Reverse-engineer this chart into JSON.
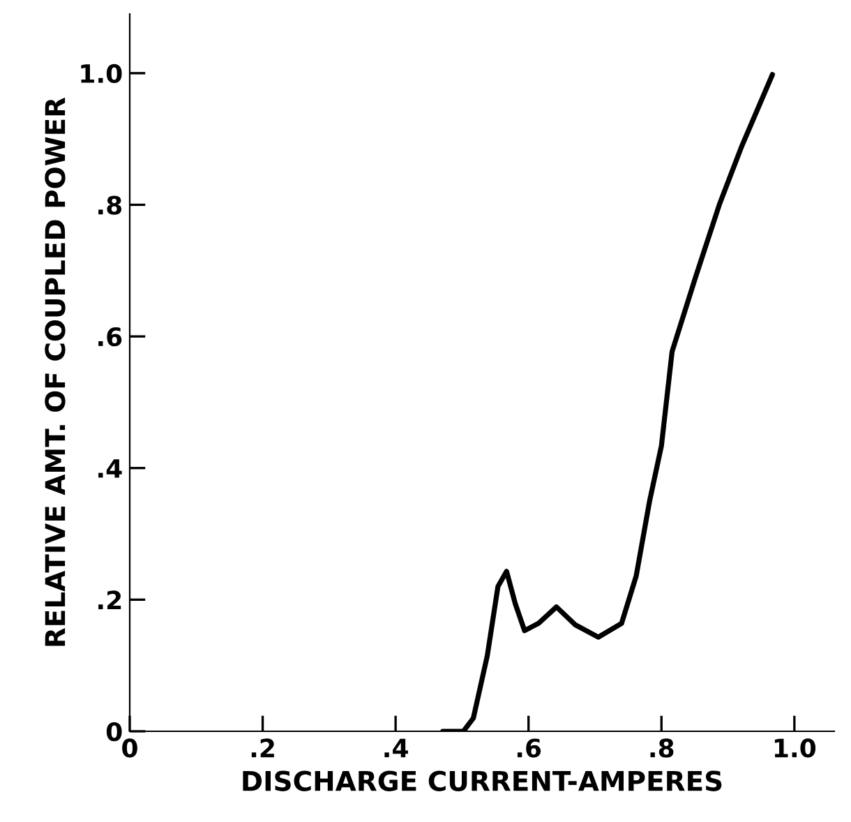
{
  "chart_data": {
    "type": "line",
    "xlabel": "DISCHARGE CURRENT-AMPERES",
    "ylabel": "RELATIVE AMT. OF COUPLED POWER",
    "xlim": [
      0,
      1.06
    ],
    "ylim": [
      0,
      1.09
    ],
    "xticks": [
      {
        "value": 0,
        "label": "0"
      },
      {
        "value": 0.2,
        "label": ".2"
      },
      {
        "value": 0.4,
        "label": ".4"
      },
      {
        "value": 0.6,
        "label": ".6"
      },
      {
        "value": 0.8,
        "label": ".8"
      },
      {
        "value": 1.0,
        "label": "1.0"
      }
    ],
    "yticks": [
      {
        "value": 0,
        "label": "0"
      },
      {
        "value": 0.2,
        "label": ".2"
      },
      {
        "value": 0.4,
        "label": ".4"
      },
      {
        "value": 0.6,
        "label": ".6"
      },
      {
        "value": 0.8,
        "label": ".8"
      },
      {
        "value": 1.0,
        "label": "1.0"
      }
    ],
    "grid": false,
    "series": [
      {
        "color": "#000000",
        "x": [
          0.471,
          0.502,
          0.517,
          0.538,
          0.554,
          0.567,
          0.58,
          0.594,
          0.615,
          0.642,
          0.67,
          0.705,
          0.74,
          0.762,
          0.782,
          0.8,
          0.816,
          0.851,
          0.887,
          0.92,
          0.967
        ],
        "values": [
          0,
          0,
          0.02,
          0.115,
          0.22,
          0.243,
          0.194,
          0.153,
          0.164,
          0.189,
          0.162,
          0.143,
          0.164,
          0.236,
          0.349,
          0.434,
          0.577,
          0.689,
          0.8,
          0.887,
          0.998
        ]
      }
    ]
  }
}
